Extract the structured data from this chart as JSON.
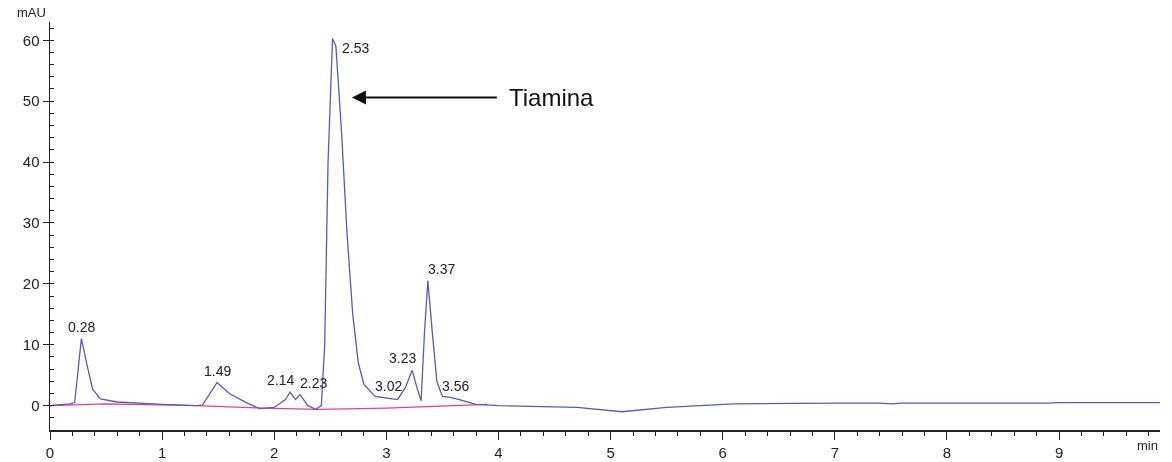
{
  "chart_data": {
    "type": "line",
    "xlabel": "min",
    "ylabel": "mAU",
    "xlim": [
      0,
      9.9
    ],
    "xticks": [
      0,
      1,
      2,
      3,
      4,
      5,
      6,
      7,
      8,
      9
    ],
    "ylim": [
      -4,
      63
    ],
    "yticks": [
      0,
      10,
      20,
      30,
      40,
      50,
      60
    ],
    "grid": false,
    "marker": "none",
    "line_style": "solid",
    "series": [
      {
        "color": "#5a5ab4",
        "x": [
          0,
          0.18,
          0.22,
          0.28,
          0.33,
          0.38,
          0.45,
          0.6,
          1.0,
          1.3,
          1.36,
          1.49,
          1.6,
          1.75,
          1.87,
          2.0,
          2.1,
          2.14,
          2.19,
          2.23,
          2.3,
          2.37,
          2.42,
          2.45,
          2.48,
          2.52,
          2.55,
          2.6,
          2.65,
          2.7,
          2.75,
          2.8,
          2.9,
          3.02,
          3.1,
          3.17,
          3.23,
          3.28,
          3.31,
          3.34,
          3.37,
          3.41,
          3.45,
          3.5,
          3.56,
          3.65,
          3.8,
          4.0,
          4.7,
          5.1,
          5.5,
          6.1,
          7.0,
          7.4,
          7.5,
          7.6,
          8.9,
          9.0,
          9.9
        ],
        "values": [
          0,
          0.3,
          0.5,
          11,
          6.7,
          2.7,
          1.1,
          0.6,
          0.2,
          0,
          0.1,
          3.8,
          2,
          0.5,
          -0.5,
          -0.3,
          1,
          2.2,
          1,
          1.8,
          0,
          -0.6,
          0,
          10,
          40,
          60.3,
          59,
          45,
          28,
          15,
          7,
          3.5,
          1.5,
          1.2,
          1,
          3,
          5.8,
          2.5,
          0.8,
          12,
          20.5,
          12,
          4,
          1.5,
          1.4,
          1,
          0.2,
          0,
          -0.3,
          -1,
          -0.3,
          0.3,
          0.4,
          0.4,
          0.3,
          0.4,
          0.4,
          0.5,
          0.5
        ]
      },
      {
        "color": "#e0409c",
        "x": [
          0,
          0.5,
          1.3,
          1.9,
          2.4,
          3.0,
          3.9
        ],
        "values": [
          0,
          0.3,
          0,
          -0.4,
          -0.6,
          -0.4,
          0.2
        ]
      }
    ],
    "annotations": [
      {
        "text": "0.28",
        "x": 0.28,
        "y": 11
      },
      {
        "text": "1.49",
        "x": 1.49,
        "y": 3.8
      },
      {
        "text": "2.14",
        "x": 2.14,
        "y": 2.2
      },
      {
        "text": "2.23",
        "x": 2.23,
        "y": 1.8
      },
      {
        "text": "2.53",
        "x": 2.53,
        "y": 60.3
      },
      {
        "text": "3.02",
        "x": 3.02,
        "y": 1.2
      },
      {
        "text": "3.23",
        "x": 3.23,
        "y": 5.8
      },
      {
        "text": "3.37",
        "x": 3.37,
        "y": 20.5
      },
      {
        "text": "3.56",
        "x": 3.56,
        "y": 1.4
      },
      "Tiamina"
    ]
  }
}
